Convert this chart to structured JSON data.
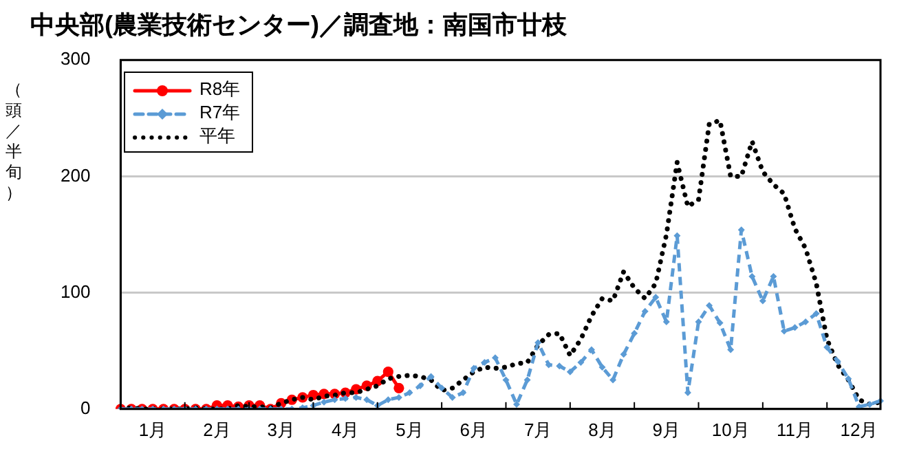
{
  "chart_data": {
    "type": "line",
    "title": "中央部(農業技術センター)／調査地：南国市廿枝",
    "ylabel": "（頭／半旬）",
    "categories": [
      null,
      null,
      null,
      "1月",
      null,
      null,
      null,
      null,
      null,
      "2月",
      null,
      null,
      null,
      null,
      null,
      "3月",
      null,
      null,
      null,
      null,
      null,
      "4月",
      null,
      null,
      null,
      null,
      null,
      "5月",
      null,
      null,
      null,
      null,
      null,
      "6月",
      null,
      null,
      null,
      null,
      null,
      "7月",
      null,
      null,
      null,
      null,
      null,
      "8月",
      null,
      null,
      null,
      null,
      null,
      "9月",
      null,
      null,
      null,
      null,
      null,
      "10月",
      null,
      null,
      null,
      null,
      null,
      "11月",
      null,
      null,
      null,
      null,
      null,
      "12月",
      null,
      null
    ],
    "series": [
      {
        "name": "R8年",
        "color": "#ff0000",
        "marker": "circle",
        "line_style": "solid",
        "values": [
          0,
          0,
          0,
          0,
          0,
          0,
          0,
          0,
          0,
          3,
          3,
          2,
          3,
          3,
          0,
          5,
          8,
          10,
          12,
          13,
          13,
          14,
          17,
          20,
          24,
          32,
          18,
          null,
          null,
          null,
          null,
          null,
          null,
          null,
          null,
          null,
          null,
          null,
          null,
          null,
          null,
          null,
          null,
          null,
          null,
          null,
          null,
          null,
          null,
          null,
          null,
          null,
          null,
          null,
          null,
          null,
          null,
          null,
          null,
          null,
          null,
          null,
          null,
          null,
          null,
          null,
          null,
          null,
          null,
          null,
          null,
          null
        ]
      },
      {
        "name": "R7年",
        "color": "#5b9bd5",
        "marker": "diamond",
        "line_style": "dashed",
        "values": [
          0,
          0,
          0,
          0,
          0,
          0,
          0,
          0,
          0,
          0,
          0,
          0,
          0,
          0,
          0,
          0,
          0,
          1,
          3,
          6,
          8,
          9,
          10,
          8,
          3,
          8,
          10,
          14,
          20,
          28,
          18,
          10,
          14,
          35,
          40,
          44,
          25,
          4,
          25,
          57,
          38,
          37,
          32,
          40,
          51,
          36,
          25,
          47,
          65,
          84,
          96,
          75,
          149,
          14,
          75,
          89,
          74,
          51,
          154,
          114,
          93,
          114,
          67,
          70,
          75,
          82,
          53,
          41,
          26,
          2,
          4,
          7
        ]
      },
      {
        "name": "平年",
        "color": "#000000",
        "marker": "none",
        "line_style": "dotted",
        "values": [
          0,
          1,
          0,
          0,
          0,
          0,
          0,
          1,
          0,
          0,
          0,
          3,
          2,
          2,
          1,
          5,
          8,
          10,
          8,
          11,
          12,
          14,
          14,
          17,
          20,
          26,
          28,
          29,
          28,
          25,
          16,
          18,
          25,
          32,
          36,
          35,
          36,
          39,
          40,
          55,
          64,
          65,
          46,
          60,
          80,
          95,
          93,
          118,
          104,
          95,
          108,
          150,
          212,
          174,
          180,
          245,
          248,
          200,
          200,
          230,
          204,
          193,
          185,
          155,
          138,
          108,
          60,
          38,
          25,
          8,
          4,
          6
        ]
      }
    ],
    "ylim": [
      0,
      300
    ],
    "yticks": [
      0,
      100,
      200,
      300
    ],
    "grid": "y",
    "legend": "top left"
  }
}
